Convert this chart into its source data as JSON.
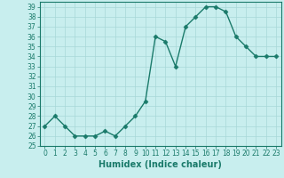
{
  "x": [
    0,
    1,
    2,
    3,
    4,
    5,
    6,
    7,
    8,
    9,
    10,
    11,
    12,
    13,
    14,
    15,
    16,
    17,
    18,
    19,
    20,
    21,
    22,
    23
  ],
  "y": [
    27,
    28,
    27,
    26,
    26,
    26,
    26.5,
    26,
    27,
    28,
    29.5,
    36,
    35.5,
    33,
    37,
    38,
    39,
    39,
    38.5,
    36,
    35,
    34,
    34,
    34
  ],
  "line_color": "#1a7a6a",
  "marker": "D",
  "marker_size": 2.5,
  "bg_color": "#c8eeee",
  "grid_color": "#a8d8d8",
  "xlabel": "Humidex (Indice chaleur)",
  "ylim": [
    25,
    39.5
  ],
  "xlim": [
    -0.5,
    23.5
  ],
  "yticks": [
    25,
    26,
    27,
    28,
    29,
    30,
    31,
    32,
    33,
    34,
    35,
    36,
    37,
    38,
    39
  ],
  "xticks": [
    0,
    1,
    2,
    3,
    4,
    5,
    6,
    7,
    8,
    9,
    10,
    11,
    12,
    13,
    14,
    15,
    16,
    17,
    18,
    19,
    20,
    21,
    22,
    23
  ],
  "tick_fontsize": 5.5,
  "xlabel_fontsize": 7,
  "line_width": 1.0
}
